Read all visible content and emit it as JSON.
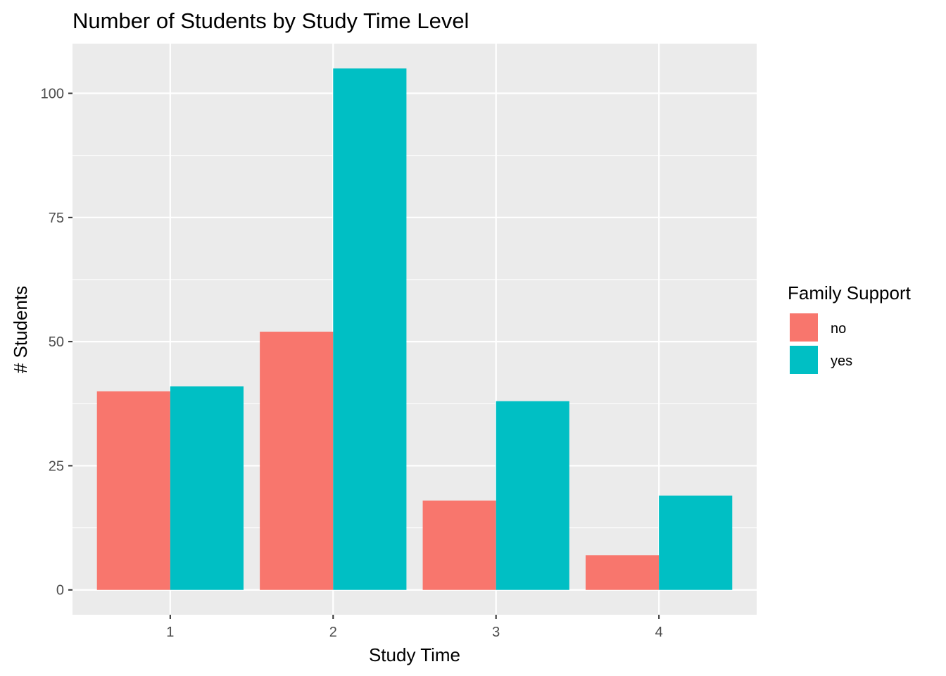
{
  "chart_data": {
    "type": "bar",
    "title": "Number of Students by Study Time Level",
    "xlabel": "Study Time",
    "ylabel": "# Students",
    "categories": [
      "1",
      "2",
      "3",
      "4"
    ],
    "series": [
      {
        "name": "no",
        "values": [
          40,
          52,
          18,
          7
        ],
        "color": "#F8766D"
      },
      {
        "name": "yes",
        "values": [
          41,
          105,
          38,
          19
        ],
        "color": "#00BFC4"
      }
    ],
    "ylim": [
      -5,
      110
    ],
    "yticks": [
      0,
      25,
      50,
      75,
      100
    ],
    "grid": true,
    "legend": {
      "title": "Family Support",
      "position": "right"
    },
    "colors": {
      "panel_background": "#EBEBEB",
      "grid": "#FFFFFF"
    }
  }
}
